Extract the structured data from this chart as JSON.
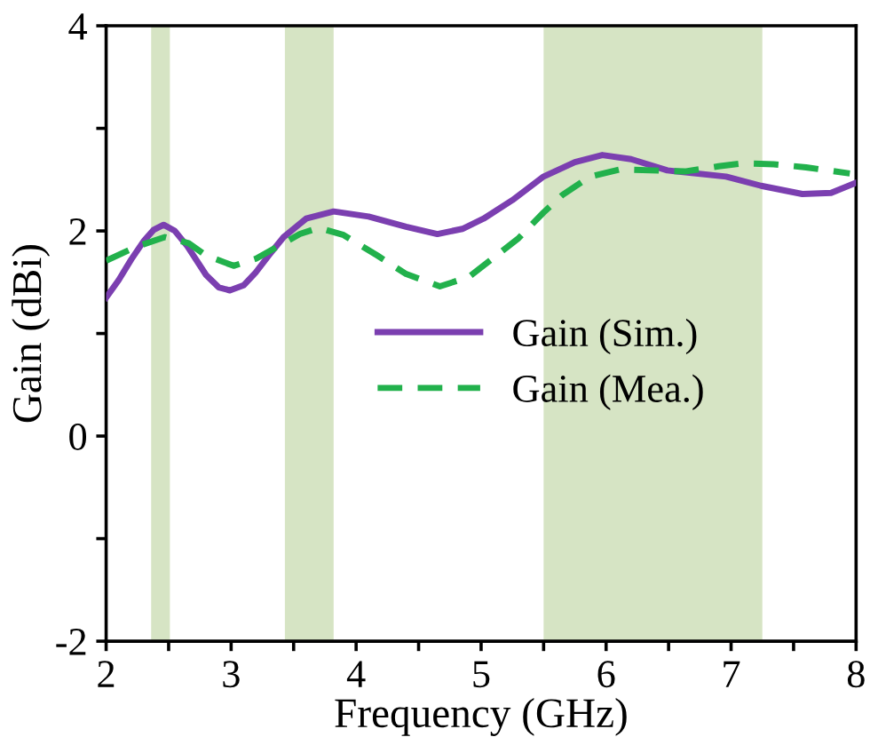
{
  "chart_data": {
    "type": "line",
    "xlabel": "Frequency (GHz)",
    "ylabel": "Gain (dBi)",
    "xlim": [
      2,
      8
    ],
    "ylim": [
      -2,
      4
    ],
    "xticks": [
      2,
      {
        "value": 2.5,
        "label": null
      },
      3,
      {
        "value": 3.5,
        "label": null
      },
      4,
      {
        "value": 4.5,
        "label": null
      },
      5,
      {
        "value": 5.5,
        "label": null
      },
      6,
      {
        "value": 6.5,
        "label": null
      },
      7,
      {
        "value": 7.5,
        "label": null
      },
      8
    ],
    "yticks": [
      -2,
      {
        "value": -1,
        "label": null
      },
      0,
      {
        "value": 1,
        "label": null
      },
      2,
      {
        "value": 3,
        "label": null
      },
      4
    ],
    "grid": false,
    "legend": "center",
    "bands": [
      {
        "axis": "x",
        "from": 2.36,
        "to": 2.51,
        "color": "#d6e4c4"
      },
      {
        "axis": "x",
        "from": 3.43,
        "to": 3.82,
        "color": "#d6e4c4"
      },
      {
        "axis": "x",
        "from": 5.5,
        "to": 7.25,
        "color": "#d6e4c4"
      }
    ],
    "series": [
      {
        "name": "Gain (Sim.)",
        "color": "#7b3fb0",
        "line_style": "solid",
        "x": [
          2,
          2.1,
          2.2,
          2.3,
          2.38,
          2.46,
          2.55,
          2.65,
          2.8,
          2.9,
          2.99,
          3.1,
          3.2,
          3.3,
          3.42,
          3.6,
          3.82,
          4.1,
          4.4,
          4.65,
          4.85,
          5.02,
          5.25,
          5.5,
          5.75,
          5.97,
          6.2,
          6.49,
          6.96,
          7.24,
          7.57,
          7.8,
          8
        ],
        "values": [
          1.35,
          1.52,
          1.72,
          1.9,
          2.01,
          2.06,
          2.0,
          1.85,
          1.57,
          1.45,
          1.42,
          1.47,
          1.6,
          1.76,
          1.94,
          2.12,
          2.19,
          2.14,
          2.04,
          1.97,
          2.02,
          2.12,
          2.3,
          2.53,
          2.67,
          2.74,
          2.7,
          2.59,
          2.53,
          2.44,
          2.36,
          2.37,
          2.47
        ]
      },
      {
        "name": "Gain (Mea.)",
        "color": "#22b14c",
        "line_style": "dashed",
        "x": [
          2,
          2.25,
          2.47,
          2.66,
          2.8,
          3.02,
          3.2,
          3.42,
          3.55,
          3.7,
          3.9,
          4.17,
          4.4,
          4.67,
          4.9,
          5.07,
          5.3,
          5.5,
          5.65,
          5.87,
          6.11,
          6.63,
          6.9,
          7.1,
          7.34,
          7.6,
          7.95
        ],
        "values": [
          1.71,
          1.85,
          1.94,
          1.88,
          1.76,
          1.66,
          1.73,
          1.88,
          1.97,
          2.03,
          1.96,
          1.76,
          1.58,
          1.46,
          1.55,
          1.71,
          1.93,
          2.18,
          2.35,
          2.53,
          2.6,
          2.58,
          2.63,
          2.66,
          2.65,
          2.62,
          2.56
        ]
      }
    ]
  }
}
